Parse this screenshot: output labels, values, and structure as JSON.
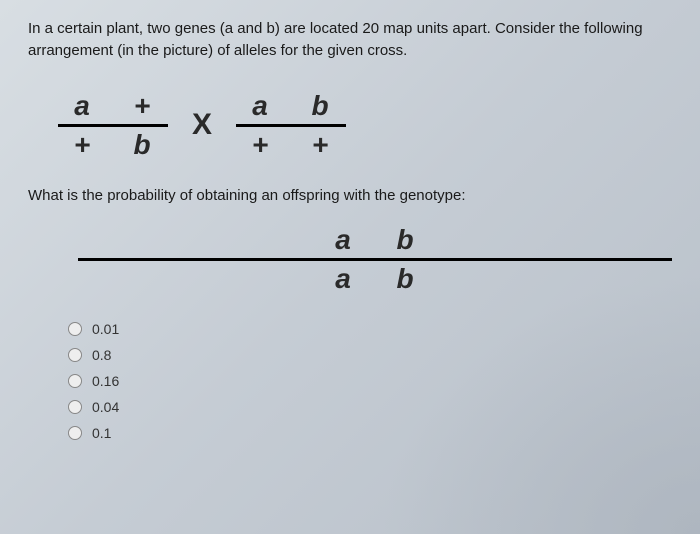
{
  "intro": "In a certain plant, two genes (a and b) are located 20 map units apart. Consider the following arrangement (in the picture) of alleles for the given cross.",
  "cross": {
    "left": {
      "top": [
        "a",
        "+"
      ],
      "bottom": [
        "+",
        "b"
      ]
    },
    "operator": "X",
    "right": {
      "top": [
        "a",
        "b"
      ],
      "bottom": [
        "+",
        "+"
      ]
    }
  },
  "question_text": "What is the probability of obtaining an offspring with the genotype:",
  "target": {
    "top": [
      "a",
      "b"
    ],
    "bottom": [
      "a",
      "b"
    ]
  },
  "options": [
    {
      "label": "0.01"
    },
    {
      "label": "0.8"
    },
    {
      "label": "0.16"
    },
    {
      "label": "0.04"
    },
    {
      "label": "0.1"
    }
  ],
  "colors": {
    "text": "#1a1a1a",
    "frac_line": "#000000",
    "radio_border": "#888888",
    "bg_start": "#d8dee3",
    "bg_end": "#b8c0c9"
  },
  "typography": {
    "intro_fontsize": 15,
    "frac_fontsize": 28,
    "option_fontsize": 14
  }
}
